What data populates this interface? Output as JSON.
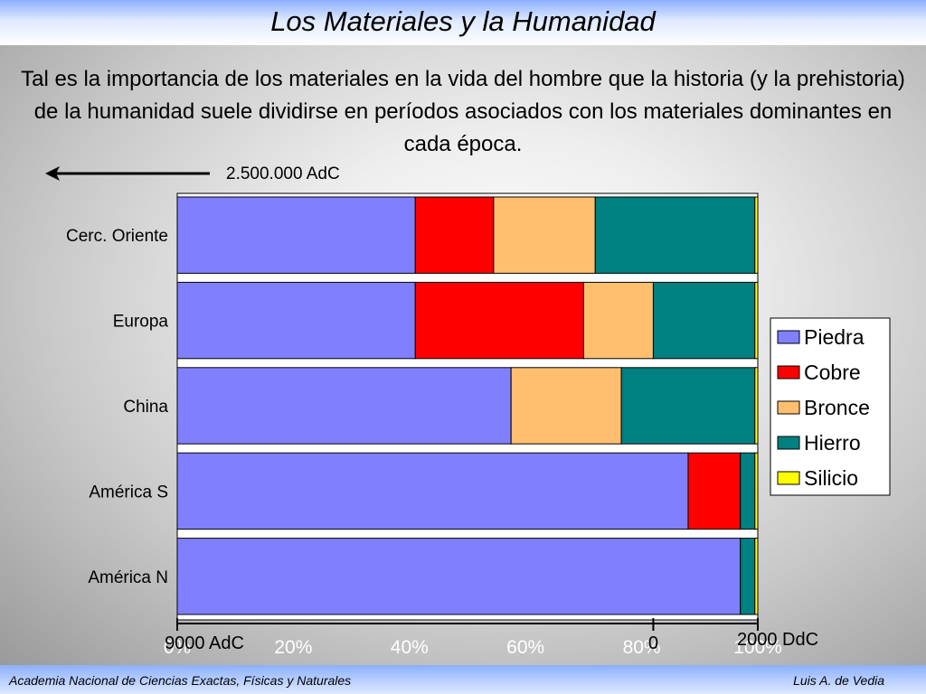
{
  "slide": {
    "title": "Los Materiales y la Humanidad",
    "intro": "Tal es la importancia de los materiales en la vida del hombre que la historia (y la prehistoria) de la humanidad suele dividirse en períodos asociados con los materiales dominantes en cada época.",
    "arrow_label": "2.500.000 AdC",
    "footer_left": "Academia Nacional de Ciencias Exactas, Físicas y Naturales",
    "footer_right": "Luis A. de Vedia"
  },
  "colors": {
    "Piedra": "#8080ff",
    "Cobre": "#ff0000",
    "Bronce": "#ffbf6f",
    "Hierro": "#008080",
    "Silicio": "#ffff00"
  },
  "chart_data": {
    "type": "bar",
    "orientation": "horizontal",
    "stacked": "percent",
    "categories": [
      "Cerc. Oriente",
      "Europa",
      "China",
      "América S",
      "América N"
    ],
    "series": [
      {
        "name": "Piedra",
        "values": [
          41,
          41,
          57.5,
          88,
          97
        ]
      },
      {
        "name": "Cobre",
        "values": [
          13.5,
          29,
          0,
          9,
          0
        ]
      },
      {
        "name": "Bronce",
        "values": [
          17.5,
          12,
          19,
          0,
          0
        ]
      },
      {
        "name": "Hierro",
        "values": [
          27.5,
          17.5,
          23,
          2.5,
          2.5
        ]
      },
      {
        "name": "Silicio",
        "values": [
          0.5,
          0.5,
          0.5,
          0.5,
          0.5
        ]
      }
    ],
    "xlim": [
      0,
      100
    ],
    "x_tick_labels": [
      "0%",
      "20%",
      "40%",
      "60%",
      "80%",
      "100%"
    ],
    "time_axis_labels": [
      {
        "label": "9000 AdC",
        "pct": 0
      },
      {
        "label": "0",
        "pct": 82
      },
      {
        "label": "2000 DdC",
        "pct": 100
      }
    ],
    "legend_position": "right"
  }
}
